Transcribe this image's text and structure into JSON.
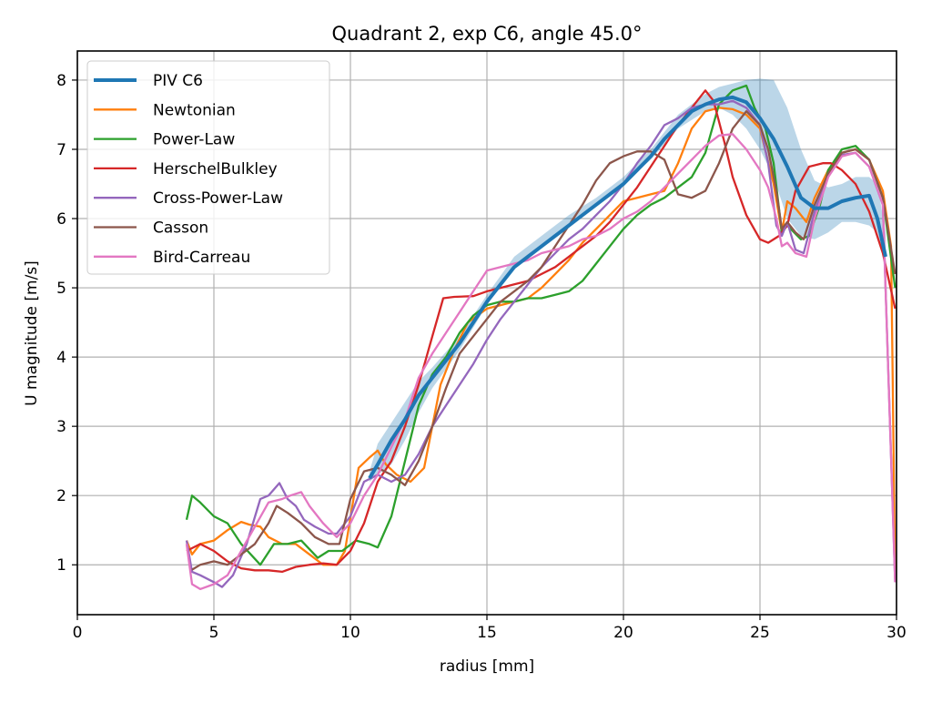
{
  "chart_data": {
    "type": "line",
    "title": "Quadrant 2, exp C6, angle 45.0°",
    "xlabel": "radius [mm]",
    "ylabel": "U magnitude [m/s]",
    "xlim": [
      0,
      30
    ],
    "ylim": [
      0.28,
      8.42
    ],
    "xticks": [
      0,
      5,
      10,
      15,
      20,
      25,
      30
    ],
    "yticks": [
      1,
      2,
      3,
      4,
      5,
      6,
      7,
      8
    ],
    "grid": true,
    "legend_position": "top-left",
    "band": {
      "name": "PIV C6 range",
      "color": "#1f77b4",
      "opacity": 0.3,
      "x": [
        10.7,
        11.0,
        11.5,
        12.0,
        12.5,
        13.0,
        14.0,
        15.0,
        16.0,
        17.0,
        18.0,
        19.0,
        20.0,
        21.0,
        22.0,
        23.0,
        23.5,
        24.0,
        24.5,
        25.0,
        25.5,
        26.0,
        26.5,
        27.0,
        27.5,
        28.0,
        28.5,
        29.0,
        29.3,
        29.6
      ],
      "upper": [
        2.35,
        2.75,
        3.05,
        3.35,
        3.65,
        3.85,
        4.3,
        4.9,
        5.45,
        5.75,
        6.05,
        6.3,
        6.6,
        7.0,
        7.5,
        7.8,
        7.9,
        7.95,
        8.0,
        8.02,
        8.0,
        7.6,
        7.0,
        6.55,
        6.45,
        6.5,
        6.6,
        6.6,
        6.5,
        5.8
      ],
      "lower": [
        2.2,
        2.3,
        2.45,
        2.8,
        3.2,
        3.55,
        4.1,
        4.75,
        5.3,
        5.6,
        5.9,
        6.2,
        6.5,
        6.85,
        7.3,
        7.55,
        7.6,
        7.5,
        7.3,
        7.0,
        6.6,
        6.0,
        5.75,
        5.7,
        5.8,
        5.95,
        5.95,
        5.9,
        5.8,
        5.3
      ]
    },
    "series": [
      {
        "name": "PIV C6",
        "color": "#1f77b4",
        "x": [
          10.7,
          11.0,
          11.5,
          12.0,
          12.5,
          13.0,
          13.5,
          14.0,
          14.5,
          15.0,
          15.5,
          16.0,
          16.5,
          17.0,
          17.5,
          18.0,
          18.5,
          19.0,
          19.5,
          20.0,
          20.5,
          21.0,
          21.5,
          22.0,
          22.5,
          23.0,
          23.5,
          24.0,
          24.5,
          25.0,
          25.5,
          26.0,
          26.5,
          27.0,
          27.5,
          28.0,
          28.5,
          29.0,
          29.3,
          29.6
        ],
        "y": [
          2.25,
          2.45,
          2.8,
          3.1,
          3.45,
          3.7,
          3.95,
          4.2,
          4.5,
          4.8,
          5.05,
          5.3,
          5.45,
          5.6,
          5.75,
          5.9,
          6.05,
          6.2,
          6.35,
          6.5,
          6.7,
          6.9,
          7.15,
          7.35,
          7.55,
          7.65,
          7.72,
          7.75,
          7.68,
          7.45,
          7.15,
          6.75,
          6.3,
          6.15,
          6.15,
          6.25,
          6.3,
          6.33,
          6.0,
          5.45
        ]
      },
      {
        "name": "Newtonian",
        "color": "#ff7f0e",
        "x": [
          4.0,
          4.2,
          4.5,
          5.0,
          5.5,
          6.0,
          6.3,
          6.7,
          7.0,
          7.5,
          8.0,
          8.5,
          9.0,
          9.5,
          9.8,
          10.3,
          10.7,
          11.0,
          11.3,
          11.7,
          12.2,
          12.7,
          13.3,
          13.8,
          14.3,
          15.0,
          15.5,
          16.0,
          16.5,
          17.0,
          17.5,
          18.0,
          18.5,
          19.0,
          19.5,
          20.0,
          20.5,
          21.0,
          21.5,
          22.0,
          22.5,
          23.0,
          23.5,
          24.0,
          24.5,
          25.0,
          25.5,
          25.8,
          26.0,
          26.3,
          26.7,
          27.0,
          27.5,
          28.0,
          28.5,
          29.0,
          29.5,
          29.8,
          29.95
        ],
        "y": [
          1.35,
          1.15,
          1.3,
          1.35,
          1.5,
          1.62,
          1.58,
          1.55,
          1.4,
          1.3,
          1.3,
          1.15,
          1.0,
          1.0,
          1.2,
          2.4,
          2.55,
          2.65,
          2.45,
          2.3,
          2.2,
          2.4,
          3.6,
          4.1,
          4.5,
          4.7,
          4.75,
          4.8,
          4.85,
          5.0,
          5.2,
          5.4,
          5.65,
          5.85,
          6.05,
          6.25,
          6.3,
          6.35,
          6.4,
          6.8,
          7.3,
          7.55,
          7.6,
          7.58,
          7.5,
          7.3,
          6.5,
          5.8,
          6.25,
          6.15,
          5.95,
          6.3,
          6.7,
          6.95,
          7.0,
          6.85,
          6.4,
          5.6,
          0.8
        ]
      },
      {
        "name": "Power-Law",
        "color": "#2ca02c",
        "x": [
          4.0,
          4.2,
          4.5,
          5.0,
          5.5,
          6.0,
          6.7,
          7.2,
          7.7,
          8.2,
          8.8,
          9.2,
          9.7,
          10.2,
          10.7,
          11.0,
          11.5,
          12.0,
          12.5,
          13.0,
          13.5,
          14.0,
          14.5,
          15.0,
          15.5,
          16.0,
          16.5,
          17.0,
          17.5,
          18.0,
          18.5,
          19.0,
          19.5,
          20.0,
          20.5,
          21.0,
          21.5,
          22.0,
          22.5,
          23.0,
          23.5,
          24.0,
          24.5,
          24.8,
          25.2,
          25.5,
          25.8,
          26.0,
          26.5,
          26.8,
          27.2,
          27.5,
          28.0,
          28.5,
          29.0,
          29.5,
          29.95
        ],
        "y": [
          1.65,
          2.0,
          1.9,
          1.7,
          1.6,
          1.3,
          1.0,
          1.3,
          1.3,
          1.35,
          1.1,
          1.2,
          1.2,
          1.35,
          1.3,
          1.25,
          1.7,
          2.5,
          3.3,
          3.75,
          4.0,
          4.35,
          4.6,
          4.75,
          4.8,
          4.8,
          4.85,
          4.85,
          4.9,
          4.95,
          5.1,
          5.35,
          5.6,
          5.85,
          6.05,
          6.2,
          6.3,
          6.45,
          6.6,
          6.95,
          7.65,
          7.85,
          7.92,
          7.6,
          7.3,
          6.8,
          5.8,
          5.9,
          5.7,
          5.75,
          6.2,
          6.7,
          7.0,
          7.05,
          6.85,
          6.3,
          5.0
        ]
      },
      {
        "name": "HerschelBulkley",
        "color": "#d62728",
        "x": [
          4.0,
          4.5,
          5.0,
          5.5,
          6.0,
          6.5,
          7.0,
          7.5,
          8.0,
          8.5,
          9.0,
          9.5,
          10.0,
          10.5,
          11.0,
          11.5,
          12.0,
          12.5,
          13.0,
          13.4,
          13.8,
          14.5,
          15.0,
          15.5,
          16.0,
          16.5,
          17.0,
          17.5,
          18.0,
          18.5,
          19.0,
          19.5,
          20.0,
          20.5,
          21.0,
          21.5,
          22.0,
          22.5,
          22.8,
          23.0,
          23.3,
          23.7,
          24.0,
          24.5,
          25.0,
          25.3,
          25.7,
          26.0,
          26.3,
          26.8,
          27.3,
          27.6,
          28.0,
          28.5,
          29.0,
          29.5,
          29.95
        ],
        "y": [
          1.2,
          1.3,
          1.2,
          1.05,
          0.95,
          0.92,
          0.92,
          0.9,
          0.97,
          1.0,
          1.02,
          1.0,
          1.2,
          1.6,
          2.2,
          2.5,
          3.0,
          3.6,
          4.3,
          4.85,
          4.87,
          4.88,
          4.95,
          5.0,
          5.05,
          5.1,
          5.2,
          5.3,
          5.45,
          5.6,
          5.75,
          5.95,
          6.2,
          6.45,
          6.75,
          7.05,
          7.35,
          7.6,
          7.75,
          7.85,
          7.7,
          7.1,
          6.6,
          6.05,
          5.7,
          5.65,
          5.75,
          5.9,
          6.4,
          6.75,
          6.8,
          6.8,
          6.7,
          6.5,
          6.1,
          5.5,
          4.7
        ]
      },
      {
        "name": "Cross-Power-Law",
        "color": "#9467bd",
        "x": [
          4.0,
          4.2,
          4.5,
          5.0,
          5.3,
          5.7,
          6.2,
          6.7,
          7.0,
          7.4,
          7.7,
          8.0,
          8.3,
          8.7,
          9.2,
          9.5,
          10.0,
          10.5,
          11.0,
          11.5,
          12.0,
          12.5,
          13.0,
          13.5,
          14.0,
          14.5,
          15.0,
          15.5,
          16.0,
          16.5,
          17.0,
          17.5,
          18.0,
          18.5,
          19.0,
          19.5,
          20.0,
          20.5,
          21.0,
          21.5,
          22.0,
          22.5,
          23.0,
          23.5,
          24.0,
          24.5,
          25.0,
          25.3,
          25.6,
          25.8,
          26.0,
          26.3,
          26.6,
          27.0,
          27.5,
          28.0,
          28.5,
          29.0,
          29.5,
          29.95
        ],
        "y": [
          1.35,
          0.9,
          0.85,
          0.75,
          0.68,
          0.85,
          1.3,
          1.95,
          2.0,
          2.18,
          1.95,
          1.85,
          1.65,
          1.55,
          1.45,
          1.45,
          1.7,
          2.2,
          2.3,
          2.2,
          2.3,
          2.6,
          3.0,
          3.3,
          3.6,
          3.9,
          4.25,
          4.55,
          4.8,
          5.05,
          5.3,
          5.5,
          5.7,
          5.85,
          6.05,
          6.25,
          6.5,
          6.8,
          7.05,
          7.35,
          7.45,
          7.6,
          7.65,
          7.65,
          7.7,
          7.6,
          7.35,
          6.8,
          5.9,
          5.75,
          5.95,
          5.55,
          5.5,
          6.1,
          6.65,
          6.92,
          6.95,
          6.75,
          6.2,
          0.75
        ]
      },
      {
        "name": "Casson",
        "color": "#8c564b",
        "x": [
          4.2,
          4.5,
          5.0,
          5.5,
          6.0,
          6.5,
          7.0,
          7.3,
          7.7,
          8.2,
          8.7,
          9.2,
          9.6,
          10.0,
          10.5,
          11.0,
          11.5,
          12.0,
          12.5,
          13.0,
          13.5,
          14.0,
          14.5,
          15.0,
          15.5,
          16.0,
          16.5,
          17.0,
          17.5,
          18.0,
          18.5,
          19.0,
          19.5,
          20.0,
          20.5,
          21.0,
          21.5,
          22.0,
          22.5,
          23.0,
          23.5,
          24.0,
          24.5,
          25.0,
          25.3,
          25.6,
          25.8,
          26.0,
          26.3,
          26.6,
          27.0,
          27.5,
          28.0,
          28.5,
          29.0,
          29.5,
          29.95
        ],
        "y": [
          0.93,
          1.0,
          1.05,
          1.0,
          1.15,
          1.3,
          1.6,
          1.85,
          1.75,
          1.6,
          1.4,
          1.3,
          1.3,
          1.95,
          2.35,
          2.4,
          2.3,
          2.15,
          2.5,
          3.0,
          3.55,
          4.05,
          4.3,
          4.55,
          4.8,
          4.95,
          5.1,
          5.3,
          5.6,
          5.9,
          6.2,
          6.55,
          6.8,
          6.9,
          6.97,
          6.97,
          6.85,
          6.35,
          6.3,
          6.4,
          6.8,
          7.3,
          7.55,
          7.35,
          7.0,
          6.4,
          5.85,
          5.95,
          5.8,
          5.7,
          6.2,
          6.65,
          6.95,
          7.0,
          6.85,
          6.3,
          5.2
        ]
      },
      {
        "name": "Bird-Carreau",
        "color": "#e377c2",
        "x": [
          4.0,
          4.2,
          4.5,
          5.0,
          5.5,
          6.0,
          6.5,
          7.0,
          7.5,
          7.8,
          8.2,
          8.5,
          9.0,
          9.5,
          10.0,
          10.5,
          11.0,
          11.5,
          12.0,
          12.5,
          13.0,
          13.5,
          14.0,
          14.5,
          15.0,
          15.5,
          16.0,
          16.5,
          17.0,
          17.5,
          18.0,
          18.5,
          19.0,
          19.5,
          20.0,
          20.5,
          21.0,
          21.5,
          22.0,
          22.5,
          23.0,
          23.5,
          24.0,
          24.5,
          25.0,
          25.3,
          25.6,
          25.8,
          26.0,
          26.3,
          26.7,
          27.0,
          27.5,
          28.0,
          28.5,
          29.0,
          29.5,
          29.95
        ],
        "y": [
          1.3,
          0.72,
          0.65,
          0.72,
          0.85,
          1.2,
          1.55,
          1.9,
          1.95,
          2.0,
          2.05,
          1.85,
          1.6,
          1.4,
          1.6,
          2.0,
          2.3,
          2.7,
          3.1,
          3.7,
          4.05,
          4.35,
          4.65,
          4.95,
          5.25,
          5.3,
          5.35,
          5.4,
          5.5,
          5.55,
          5.6,
          5.7,
          5.75,
          5.85,
          6.0,
          6.1,
          6.25,
          6.45,
          6.65,
          6.85,
          7.05,
          7.2,
          7.22,
          7.0,
          6.7,
          6.45,
          6.0,
          5.6,
          5.65,
          5.5,
          5.45,
          6.0,
          6.6,
          6.9,
          6.95,
          6.75,
          6.2,
          0.75
        ]
      }
    ]
  }
}
